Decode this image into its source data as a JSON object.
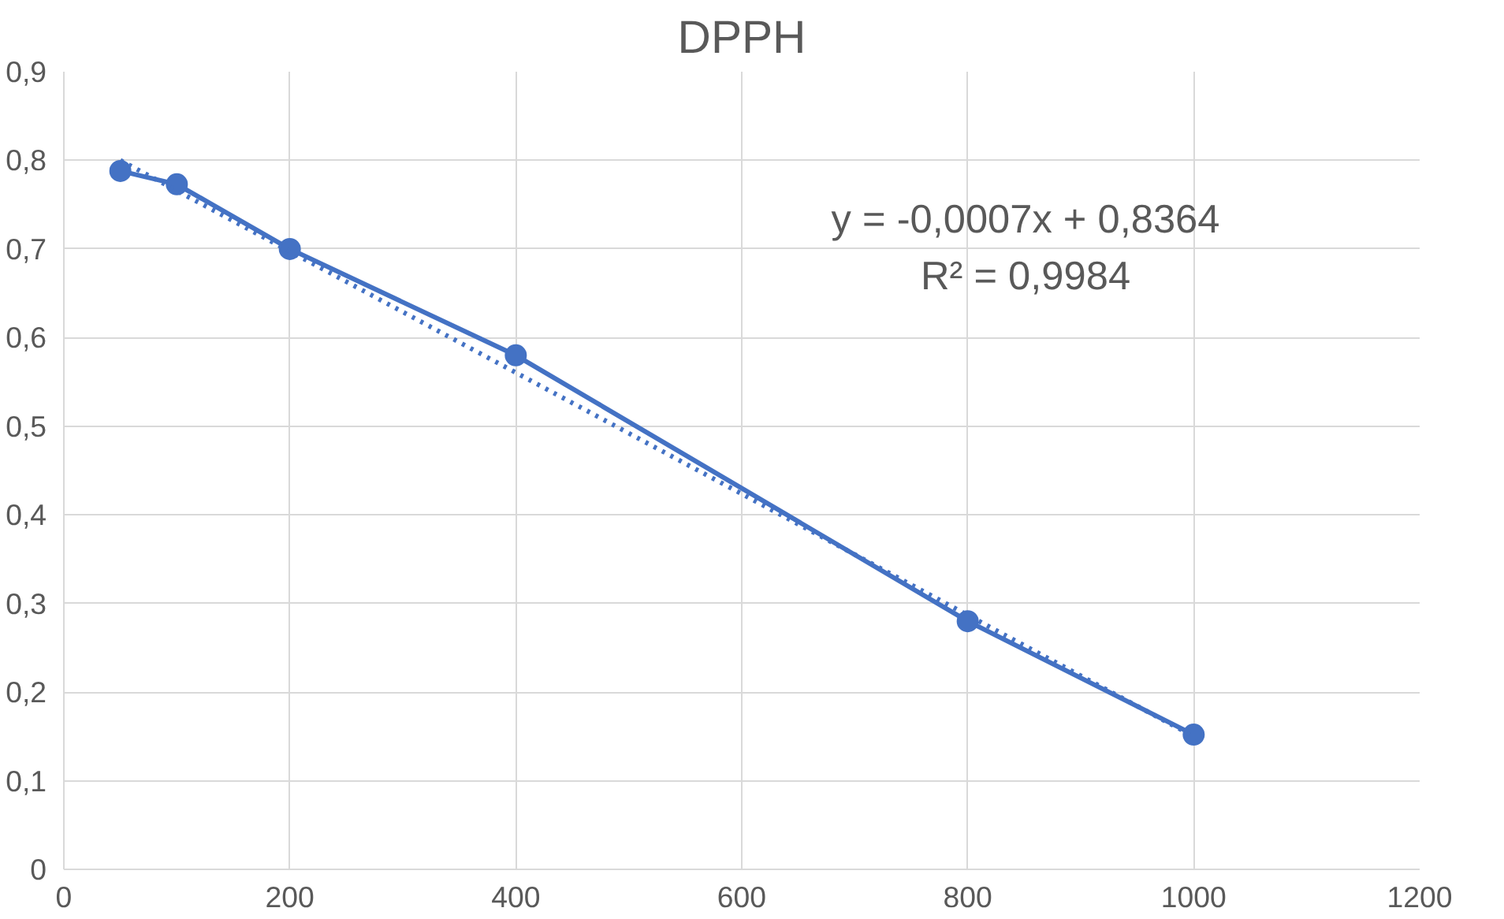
{
  "chart_data": {
    "type": "line",
    "title": "DPPH",
    "x": [
      50,
      100,
      200,
      400,
      800,
      1000
    ],
    "series": [
      {
        "color": "#4472c4",
        "marker": "circle",
        "line_style": "solid",
        "values": [
          0.788,
          0.773,
          0.7,
          0.58,
          0.28,
          0.152
        ]
      },
      {
        "color": "#4472c4",
        "marker": "none",
        "line_style": "dotted",
        "x": [
          50,
          1000
        ],
        "values": [
          0.8,
          0.15
        ]
      }
    ],
    "annotations": [
      "y = -0,0007x + 0,8364",
      "R² = 0,9984"
    ],
    "xlim": [
      0,
      1200
    ],
    "ylim": [
      0,
      0.9
    ],
    "xticks": [
      0,
      200,
      400,
      600,
      800,
      1000,
      1200
    ],
    "yticks": [
      0,
      {
        "value": 0.1,
        "label": "0,1"
      },
      {
        "value": 0.2,
        "label": "0,2"
      },
      {
        "value": 0.3,
        "label": "0,3"
      },
      {
        "value": 0.4,
        "label": "0,4"
      },
      {
        "value": 0.5,
        "label": "0,5"
      },
      {
        "value": 0.6,
        "label": "0,6"
      },
      {
        "value": 0.7,
        "label": "0,7"
      },
      {
        "value": 0.8,
        "label": "0,8"
      },
      {
        "value": 0.9,
        "label": "0,9"
      }
    ],
    "grid": true
  }
}
